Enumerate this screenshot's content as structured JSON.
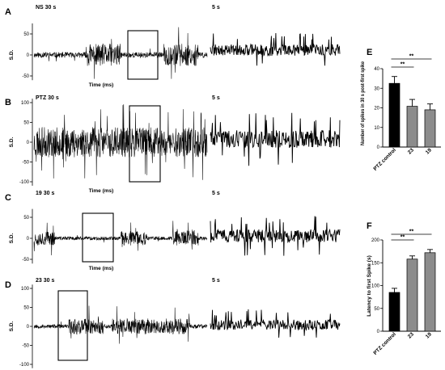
{
  "chart_data": [
    {
      "panel": "A",
      "type": "line",
      "title": "NS 30 s",
      "zoom_title": "5 s",
      "xlabel": "Time (ms)",
      "ylabel": "S.D.",
      "yticks": [
        50,
        0,
        -50
      ],
      "ylim": [
        -60,
        75
      ],
      "amplitude": 0.7
    },
    {
      "panel": "B",
      "type": "line",
      "title": "PTZ 30 s",
      "zoom_title": "5 s",
      "xlabel": "Time (ms)",
      "ylabel": "S.D.",
      "yticks": [
        100,
        50,
        0,
        -50,
        -100
      ],
      "ylim": [
        -110,
        110
      ],
      "amplitude": 1.0
    },
    {
      "panel": "C",
      "type": "line",
      "title": "19 30 s",
      "zoom_title": "5 s",
      "xlabel": "Time (ms)",
      "ylabel": "S.D.",
      "yticks": [
        50,
        0,
        -50
      ],
      "ylim": [
        -60,
        70
      ],
      "amplitude": 0.45
    },
    {
      "panel": "D",
      "type": "line",
      "title": "23 30 s",
      "zoom_title": "5 s",
      "xlabel": "Time (ms)",
      "ylabel": "S.D.",
      "yticks": [
        100,
        50,
        0,
        -50,
        -100
      ],
      "ylim": [
        -110,
        110
      ],
      "amplitude": 0.55
    },
    {
      "panel": "E",
      "type": "bar",
      "categories": [
        "PTZ control",
        "23",
        "19"
      ],
      "values": [
        32.5,
        20.8,
        19.0
      ],
      "errors": [
        3.5,
        3.5,
        3.0
      ],
      "colors": [
        "#000000",
        "#8c8c8c",
        "#8c8c8c"
      ],
      "ylabel": "Number of spikes in 30 s post-first spike",
      "ylim": [
        0,
        40
      ],
      "yticks": [
        0,
        10,
        20,
        30,
        40
      ],
      "significance": [
        {
          "from": 0,
          "to": 1,
          "label": "**"
        },
        {
          "from": 0,
          "to": 2,
          "label": "**"
        }
      ]
    },
    {
      "panel": "F",
      "type": "bar",
      "categories": [
        "PTZ control",
        "23",
        "19"
      ],
      "values": [
        85,
        158,
        172
      ],
      "errors": [
        9,
        7,
        7
      ],
      "colors": [
        "#000000",
        "#8c8c8c",
        "#8c8c8c"
      ],
      "ylabel": "Latency to first Spike (s)",
      "ylim": [
        0,
        200
      ],
      "yticks": [
        0,
        50,
        100,
        150,
        200
      ],
      "significance": [
        {
          "from": 0,
          "to": 1,
          "label": "**"
        },
        {
          "from": 0,
          "to": 2,
          "label": "**"
        }
      ]
    }
  ]
}
